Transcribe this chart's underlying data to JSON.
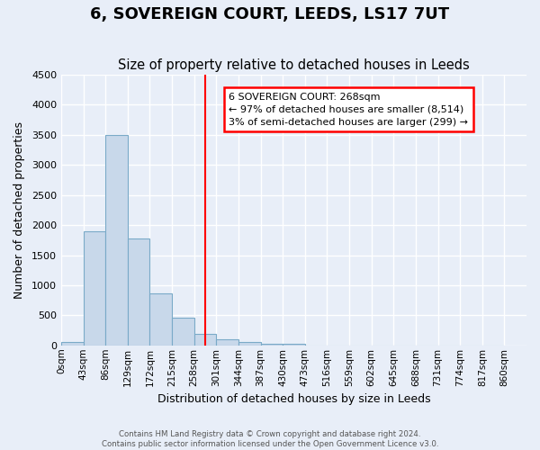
{
  "title": "6, SOVEREIGN COURT, LEEDS, LS17 7UT",
  "subtitle": "Size of property relative to detached houses in Leeds",
  "xlabel": "Distribution of detached houses by size in Leeds",
  "ylabel": "Number of detached properties",
  "footer_line1": "Contains HM Land Registry data © Crown copyright and database right 2024.",
  "footer_line2": "Contains public sector information licensed under the Open Government Licence v3.0.",
  "bin_labels": [
    "0sqm",
    "43sqm",
    "86sqm",
    "129sqm",
    "172sqm",
    "215sqm",
    "258sqm",
    "301sqm",
    "344sqm",
    "387sqm",
    "430sqm",
    "473sqm",
    "516sqm",
    "559sqm",
    "602sqm",
    "645sqm",
    "688sqm",
    "731sqm",
    "774sqm",
    "817sqm",
    "860sqm"
  ],
  "bar_values": [
    50,
    1900,
    3500,
    1780,
    860,
    460,
    185,
    95,
    55,
    30,
    25,
    0,
    0,
    0,
    0,
    0,
    0,
    0,
    0,
    0
  ],
  "bar_color": "#c8d8ea",
  "bar_edgecolor": "#7aaac8",
  "ylim": [
    0,
    4500
  ],
  "yticks": [
    0,
    500,
    1000,
    1500,
    2000,
    2500,
    3000,
    3500,
    4000,
    4500
  ],
  "vline_idx": 6,
  "vline_color": "red",
  "annotation_line1": "6 SOVEREIGN COURT: 268sqm",
  "annotation_line2": "← 97% of detached houses are smaller (8,514)",
  "annotation_line3": "3% of semi-detached houses are larger (299) →",
  "annotation_box_color": "white",
  "annotation_box_edgecolor": "red",
  "background_color": "#e8eef8",
  "plot_background_color": "#e8eef8",
  "grid_color": "white",
  "title_fontsize": 13,
  "subtitle_fontsize": 10.5
}
